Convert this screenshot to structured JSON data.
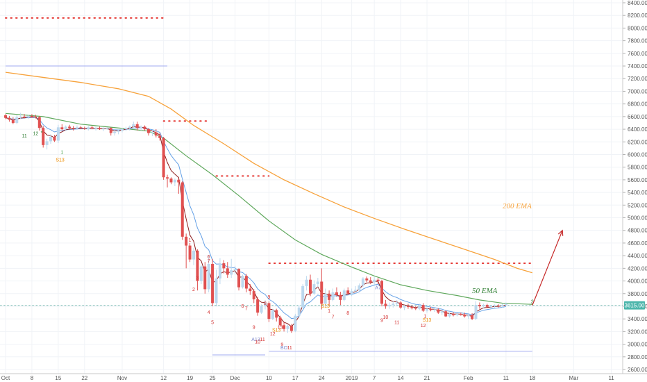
{
  "chart_data": {
    "type": "candlestick",
    "ylim": [
      2600,
      8400
    ],
    "y_ticks": [
      "8400.00",
      "8200.00",
      "8000.00",
      "7800.00",
      "7600.00",
      "7400.00",
      "7200.00",
      "7000.00",
      "6800.00",
      "6600.00",
      "6400.00",
      "6200.00",
      "6000.00",
      "5800.00",
      "5600.00",
      "5400.00",
      "5200.00",
      "5000.00",
      "4800.00",
      "4600.00",
      "4400.00",
      "4200.00",
      "4000.00",
      "3800.00",
      "3600.00",
      "3400.00",
      "3200.00",
      "3000.00",
      "2800.00",
      "2600.00"
    ],
    "x_ticks": [
      {
        "label": "Oct",
        "day": 0
      },
      {
        "label": "8",
        "day": 7
      },
      {
        "label": "15",
        "day": 14
      },
      {
        "label": "22",
        "day": 21
      },
      {
        "label": "Nov",
        "day": 31
      },
      {
        "label": "12",
        "day": 42
      },
      {
        "label": "19",
        "day": 49
      },
      {
        "label": "25",
        "day": 55
      },
      {
        "label": "Dec",
        "day": 61
      },
      {
        "label": "10",
        "day": 70
      },
      {
        "label": "17",
        "day": 77
      },
      {
        "label": "24",
        "day": 84
      },
      {
        "label": "2019",
        "day": 92
      },
      {
        "label": "7",
        "day": 98
      },
      {
        "label": "14",
        "day": 105
      },
      {
        "label": "21",
        "day": 112
      },
      {
        "label": "Feb",
        "day": 123
      },
      {
        "label": "11",
        "day": 133
      },
      {
        "label": "18",
        "day": 140
      },
      {
        "label": "Mar",
        "day": 151
      },
      {
        "label": "11",
        "day": 161
      }
    ],
    "price_tag": "3615.00",
    "price_line": 3615,
    "candles": [
      [
        6620,
        6640,
        6560,
        6580
      ],
      [
        6580,
        6610,
        6520,
        6550
      ],
      [
        6550,
        6590,
        6480,
        6500
      ],
      [
        6500,
        6620,
        6480,
        6590
      ],
      [
        6590,
        6660,
        6560,
        6600
      ],
      [
        6600,
        6640,
        6570,
        6590
      ],
      [
        6590,
        6630,
        6560,
        6610
      ],
      [
        6610,
        6640,
        6580,
        6600
      ],
      [
        6600,
        6630,
        6570,
        6590
      ],
      [
        6590,
        6610,
        6380,
        6420
      ],
      [
        6420,
        6450,
        6110,
        6150
      ],
      [
        6150,
        6250,
        6080,
        6210
      ],
      [
        6210,
        6320,
        6170,
        6280
      ],
      [
        6280,
        6310,
        6200,
        6220
      ],
      [
        6220,
        6470,
        6180,
        6430
      ],
      [
        6430,
        6480,
        6380,
        6400
      ],
      [
        6400,
        6460,
        6370,
        6440
      ],
      [
        6440,
        6470,
        6390,
        6420
      ],
      [
        6420,
        6450,
        6380,
        6410
      ],
      [
        6410,
        6460,
        6390,
        6430
      ],
      [
        6430,
        6450,
        6400,
        6420
      ],
      [
        6420,
        6440,
        6390,
        6410
      ],
      [
        6410,
        6450,
        6380,
        6430
      ],
      [
        6430,
        6450,
        6400,
        6410
      ],
      [
        6410,
        6440,
        6380,
        6420
      ],
      [
        6420,
        6440,
        6390,
        6400
      ],
      [
        6400,
        6430,
        6370,
        6410
      ],
      [
        6410,
        6430,
        6390,
        6420
      ],
      [
        6420,
        6430,
        6300,
        6340
      ],
      [
        6340,
        6380,
        6300,
        6360
      ],
      [
        6360,
        6400,
        6320,
        6380
      ],
      [
        6380,
        6420,
        6350,
        6400
      ],
      [
        6400,
        6440,
        6370,
        6420
      ],
      [
        6420,
        6460,
        6380,
        6440
      ],
      [
        6440,
        6520,
        6400,
        6480
      ],
      [
        6480,
        6520,
        6380,
        6420
      ],
      [
        6420,
        6460,
        6380,
        6440
      ],
      [
        6440,
        6460,
        6380,
        6400
      ],
      [
        6400,
        6420,
        6300,
        6340
      ],
      [
        6340,
        6380,
        6290,
        6350
      ],
      [
        6350,
        6400,
        6270,
        6300
      ],
      [
        6300,
        6340,
        6220,
        6260
      ],
      [
        6260,
        6280,
        5600,
        5640
      ],
      [
        5640,
        5680,
        5480,
        5620
      ],
      [
        5620,
        5640,
        5530,
        5560
      ],
      [
        5560,
        5620,
        5500,
        5600
      ],
      [
        5600,
        5620,
        5380,
        5560
      ],
      [
        5560,
        5580,
        4650,
        4700
      ],
      [
        4700,
        4750,
        4200,
        4560
      ],
      [
        4560,
        4600,
        4300,
        4340
      ],
      [
        4340,
        4520,
        4250,
        4480
      ],
      [
        4480,
        4500,
        3850,
        4000
      ],
      [
        4000,
        4260,
        3950,
        4230
      ],
      [
        4230,
        4300,
        3800,
        3870
      ],
      [
        3870,
        4410,
        3820,
        4270
      ],
      [
        4270,
        4350,
        3600,
        3650
      ],
      [
        3650,
        4180,
        3600,
        4040
      ],
      [
        4040,
        4360,
        3950,
        4280
      ],
      [
        4280,
        4330,
        4120,
        4200
      ],
      [
        4200,
        4300,
        4050,
        4100
      ],
      [
        4100,
        4350,
        4050,
        4170
      ],
      [
        4170,
        4240,
        4100,
        4190
      ],
      [
        4190,
        4200,
        3850,
        3900
      ],
      [
        3900,
        4100,
        3880,
        4080
      ],
      [
        4080,
        4110,
        3820,
        3880
      ],
      [
        3880,
        3950,
        3780,
        3840
      ],
      [
        3840,
        3870,
        3650,
        3710
      ],
      [
        3710,
        3750,
        3450,
        3500
      ],
      [
        3500,
        3630,
        3480,
        3600
      ],
      [
        3600,
        3700,
        3550,
        3650
      ],
      [
        3650,
        3680,
        3350,
        3400
      ],
      [
        3400,
        3560,
        3380,
        3540
      ],
      [
        3540,
        3560,
        3360,
        3420
      ],
      [
        3420,
        3450,
        3280,
        3300
      ],
      [
        3300,
        3350,
        3200,
        3240
      ],
      [
        3240,
        3310,
        3180,
        3290
      ],
      [
        3290,
        3320,
        3180,
        3210
      ],
      [
        3210,
        3480,
        3190,
        3450
      ],
      [
        3450,
        3620,
        3420,
        3580
      ],
      [
        3580,
        3950,
        3560,
        3920
      ],
      [
        3920,
        4080,
        3850,
        4020
      ],
      [
        4020,
        4100,
        3760,
        3800
      ],
      [
        3800,
        4010,
        3780,
        3950
      ],
      [
        3950,
        4050,
        3900,
        3990
      ],
      [
        3990,
        4200,
        3550,
        3640
      ],
      [
        3640,
        3880,
        3620,
        3800
      ],
      [
        3800,
        3850,
        3600,
        3700
      ],
      [
        3700,
        3880,
        3680,
        3820
      ],
      [
        3820,
        3900,
        3750,
        3780
      ],
      [
        3780,
        3830,
        3620,
        3700
      ],
      [
        3700,
        3880,
        3680,
        3850
      ],
      [
        3850,
        3900,
        3780,
        3800
      ],
      [
        3800,
        3880,
        3760,
        3840
      ],
      [
        3840,
        3920,
        3800,
        3860
      ],
      [
        3860,
        3960,
        3830,
        3930
      ],
      [
        3930,
        4060,
        3900,
        4040
      ],
      [
        4040,
        4070,
        3980,
        4010
      ],
      [
        4010,
        4060,
        3950,
        3980
      ],
      [
        3980,
        4060,
        3940,
        4020
      ],
      [
        4020,
        4050,
        3950,
        4000
      ],
      [
        4000,
        4020,
        3600,
        3640
      ],
      [
        3640,
        3700,
        3560,
        3600
      ],
      [
        3600,
        3660,
        3560,
        3620
      ],
      [
        3620,
        3680,
        3580,
        3640
      ],
      [
        3640,
        3700,
        3600,
        3660
      ],
      [
        3660,
        3680,
        3560,
        3580
      ],
      [
        3580,
        3620,
        3540,
        3600
      ],
      [
        3600,
        3640,
        3560,
        3590
      ],
      [
        3590,
        3620,
        3550,
        3570
      ],
      [
        3570,
        3600,
        3540,
        3560
      ],
      [
        3560,
        3640,
        3540,
        3620
      ],
      [
        3620,
        3650,
        3510,
        3530
      ],
      [
        3530,
        3580,
        3500,
        3560
      ],
      [
        3560,
        3590,
        3520,
        3540
      ],
      [
        3540,
        3570,
        3510,
        3550
      ],
      [
        3550,
        3570,
        3480,
        3500
      ],
      [
        3500,
        3540,
        3460,
        3520
      ],
      [
        3520,
        3540,
        3430,
        3440
      ],
      [
        3440,
        3500,
        3420,
        3480
      ],
      [
        3480,
        3510,
        3440,
        3460
      ],
      [
        3460,
        3500,
        3440,
        3480
      ],
      [
        3480,
        3500,
        3450,
        3470
      ],
      [
        3470,
        3500,
        3420,
        3440
      ],
      [
        3440,
        3480,
        3400,
        3460
      ],
      [
        3460,
        3490,
        3380,
        3400
      ],
      [
        3400,
        3680,
        3380,
        3620
      ],
      [
        3620,
        3660,
        3560,
        3600
      ],
      [
        3600,
        3640,
        3560,
        3620
      ],
      [
        3620,
        3640,
        3570,
        3590
      ],
      [
        3590,
        3620,
        3560,
        3600
      ],
      [
        3600,
        3630,
        3570,
        3610
      ],
      [
        3610,
        3630,
        3580,
        3600
      ],
      [
        3600,
        3640,
        3580,
        3620
      ],
      [
        3620,
        3660,
        3600,
        3640
      ]
    ],
    "ema50": [
      [
        0,
        6650
      ],
      [
        10,
        6600
      ],
      [
        20,
        6480
      ],
      [
        30,
        6420
      ],
      [
        38,
        6370
      ],
      [
        42,
        6260
      ],
      [
        48,
        5980
      ],
      [
        55,
        5680
      ],
      [
        62,
        5350
      ],
      [
        70,
        4950
      ],
      [
        77,
        4650
      ],
      [
        84,
        4420
      ],
      [
        92,
        4220
      ],
      [
        98,
        4080
      ],
      [
        105,
        3940
      ],
      [
        112,
        3850
      ],
      [
        120,
        3770
      ],
      [
        126,
        3700
      ],
      [
        132,
        3650
      ],
      [
        140,
        3630
      ]
    ],
    "ema200": [
      [
        0,
        7300
      ],
      [
        10,
        7220
      ],
      [
        20,
        7140
      ],
      [
        30,
        7040
      ],
      [
        38,
        6920
      ],
      [
        44,
        6720
      ],
      [
        50,
        6460
      ],
      [
        58,
        6170
      ],
      [
        66,
        5860
      ],
      [
        74,
        5600
      ],
      [
        82,
        5380
      ],
      [
        90,
        5170
      ],
      [
        98,
        4990
      ],
      [
        106,
        4820
      ],
      [
        114,
        4660
      ],
      [
        122,
        4500
      ],
      [
        130,
        4340
      ],
      [
        136,
        4200
      ],
      [
        140,
        4130
      ]
    ],
    "ema_labels": {
      "ema50": "50 EMA",
      "ema200": "200 EMA"
    },
    "dotted_levels": [
      {
        "price": 8160,
        "x0": 0,
        "x1": 42
      },
      {
        "price": 6530,
        "x0": 42,
        "x1": 54
      },
      {
        "price": 5660,
        "x0": 56,
        "x1": 70
      },
      {
        "price": 4280,
        "x0": 70,
        "x1": 140
      }
    ],
    "support_lines": [
      {
        "price": 7400,
        "x0": 0,
        "x1": 43
      },
      {
        "price": 2830,
        "x0": 55,
        "x1": 69
      },
      {
        "price": 2890,
        "x0": 70,
        "x1": 140
      }
    ],
    "arrow": {
      "from": [
        140,
        3615
      ],
      "to": [
        148,
        4800
      ]
    },
    "counts": [
      {
        "day": 5,
        "price": 6270,
        "text": "11",
        "color": "#2e7d32"
      },
      {
        "day": 8,
        "price": 6310,
        "text": "12",
        "color": "#2e7d32"
      },
      {
        "day": 9.6,
        "price": 6320,
        "text": "*",
        "color": "#2e7d32"
      },
      {
        "day": 15,
        "price": 6010,
        "text": "1",
        "color": "#43a047"
      },
      {
        "day": 14.5,
        "price": 5890,
        "text": "S13",
        "color": "#ef8c00"
      },
      {
        "day": 49,
        "price": 4620,
        "text": "1",
        "color": "#d32f2f"
      },
      {
        "day": 51,
        "price": 4020,
        "text": "3",
        "color": "#d32f2f"
      },
      {
        "day": 50,
        "price": 3840,
        "text": "2",
        "color": "#d32f2f"
      },
      {
        "day": 54,
        "price": 4360,
        "text": "6",
        "color": "#d32f2f"
      },
      {
        "day": 54,
        "price": 4290,
        "text": "7",
        "color": "#d32f2f"
      },
      {
        "day": 54,
        "price": 3480,
        "text": "4",
        "color": "#d32f2f"
      },
      {
        "day": 55,
        "price": 3320,
        "text": "5",
        "color": "#d32f2f"
      },
      {
        "day": 63,
        "price": 3580,
        "text": "6",
        "color": "#d32f2f"
      },
      {
        "day": 64,
        "price": 3540,
        "text": "7",
        "color": "#d32f2f"
      },
      {
        "day": 69,
        "price": 3620,
        "text": "8",
        "color": "#d32f2f"
      },
      {
        "day": 70,
        "price": 3720,
        "text": "9",
        "color": "#d32f2f"
      },
      {
        "day": 66,
        "price": 3240,
        "text": "9",
        "color": "#d32f2f"
      },
      {
        "day": 66.5,
        "price": 3050,
        "text": "A13",
        "color": "#7986cb"
      },
      {
        "day": 67,
        "price": 3010,
        "text": "10",
        "color": "#d32f2f"
      },
      {
        "day": 68.3,
        "price": 3050,
        "text": "11",
        "color": "#d32f2f"
      },
      {
        "day": 71,
        "price": 3140,
        "text": "12",
        "color": "#d32f2f"
      },
      {
        "day": 72,
        "price": 3200,
        "text": "S13",
        "color": "#ef8c00"
      },
      {
        "day": 73,
        "price": 3240,
        "text": "13",
        "color": "#d32f2f"
      },
      {
        "day": 73.5,
        "price": 2970,
        "text": "9",
        "color": "#d32f2f"
      },
      {
        "day": 74,
        "price": 2920,
        "text": "BO",
        "color": "#7986cb"
      },
      {
        "day": 75.5,
        "price": 2920,
        "text": "11",
        "color": "#d32f2f"
      },
      {
        "day": 85,
        "price": 3580,
        "text": "S13",
        "color": "#ef8c00"
      },
      {
        "day": 86,
        "price": 3500,
        "text": "1",
        "color": "#d32f2f"
      },
      {
        "day": 87,
        "price": 3410,
        "text": "7",
        "color": "#d32f2f"
      },
      {
        "day": 91,
        "price": 3470,
        "text": "8",
        "color": "#d32f2f"
      },
      {
        "day": 99,
        "price": 3870,
        "text": "A7",
        "color": "#7986cb"
      },
      {
        "day": 101,
        "price": 3400,
        "text": "10",
        "color": "#d32f2f"
      },
      {
        "day": 100,
        "price": 3350,
        "text": "9",
        "color": "#d32f2f"
      },
      {
        "day": 104,
        "price": 3320,
        "text": "11",
        "color": "#d32f2f"
      },
      {
        "day": 111.5,
        "price": 3420,
        "text": "1",
        "color": "#d32f2f"
      },
      {
        "day": 112,
        "price": 3360,
        "text": "S13",
        "color": "#ef8c00"
      },
      {
        "day": 111,
        "price": 3270,
        "text": "12",
        "color": "#d32f2f"
      },
      {
        "day": 140,
        "price": 3650,
        "text": "2",
        "color": "#2e7d32"
      }
    ]
  }
}
